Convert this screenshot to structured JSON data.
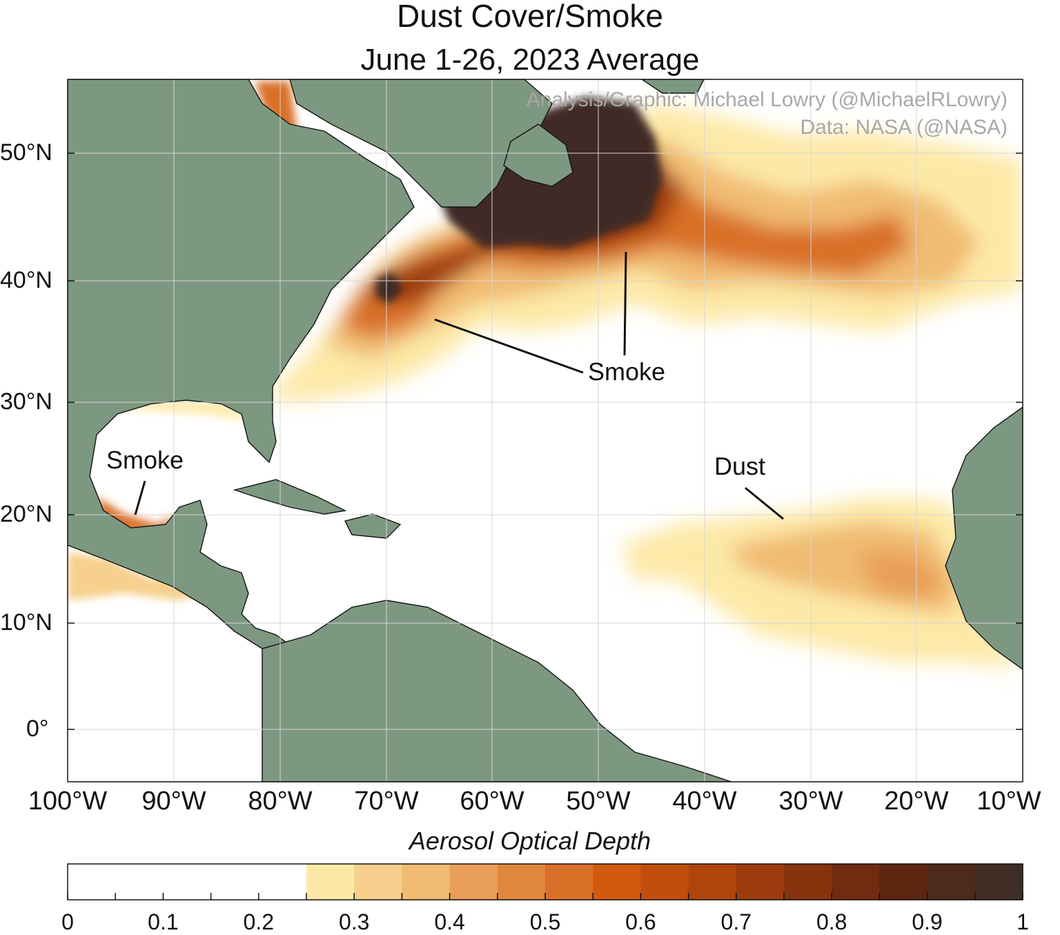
{
  "title": "Dust Cover/Smoke",
  "subtitle": "June 1-26, 2023 Average",
  "credits": {
    "analysis": "Analysis/Graphic: Michael Lowry (@MichaelRLowry)",
    "data": "Data: NASA (@NASA)"
  },
  "map": {
    "extent": {
      "lon": [
        -100,
        -10
      ],
      "lat": [
        -5,
        55
      ]
    },
    "lat_ticks": [
      "50°N",
      "40°N",
      "30°N",
      "20°N",
      "10°N",
      "0°"
    ],
    "lon_ticks": [
      "100°W",
      "90°W",
      "80°W",
      "70°W",
      "60°W",
      "50°W",
      "40°W",
      "30°W",
      "20°W",
      "10°W"
    ],
    "land_color": "#7d9880",
    "ocean_color": "#ffffff",
    "annotations": {
      "smoke_atlantic": "Smoke",
      "smoke_gulf": "Smoke",
      "dust": "Dust"
    }
  },
  "colorbar": {
    "title": "Aerosol Optical Depth",
    "tick_labels": [
      "0",
      "0.1",
      "0.2",
      "0.3",
      "0.4",
      "0.5",
      "0.6",
      "0.7",
      "0.8",
      "0.9",
      "1"
    ],
    "levels": [
      0,
      0.05,
      0.1,
      0.15,
      0.2,
      0.25,
      0.3,
      0.35,
      0.4,
      0.45,
      0.5,
      0.55,
      0.6,
      0.65,
      0.7,
      0.75,
      0.8,
      0.85,
      0.9,
      0.95,
      1.0
    ],
    "colors": [
      "#ffffff",
      "#ffffff",
      "#ffffff",
      "#ffffff",
      "#ffffff",
      "#fde9a7",
      "#f6d08c",
      "#f0bb72",
      "#e99f58",
      "#e0873e",
      "#d97028",
      "#d15a10",
      "#c04e0c",
      "#b0450b",
      "#9c3c0c",
      "#86330e",
      "#702b10",
      "#5e2610",
      "#4e2a1c",
      "#3f2c25"
    ]
  }
}
